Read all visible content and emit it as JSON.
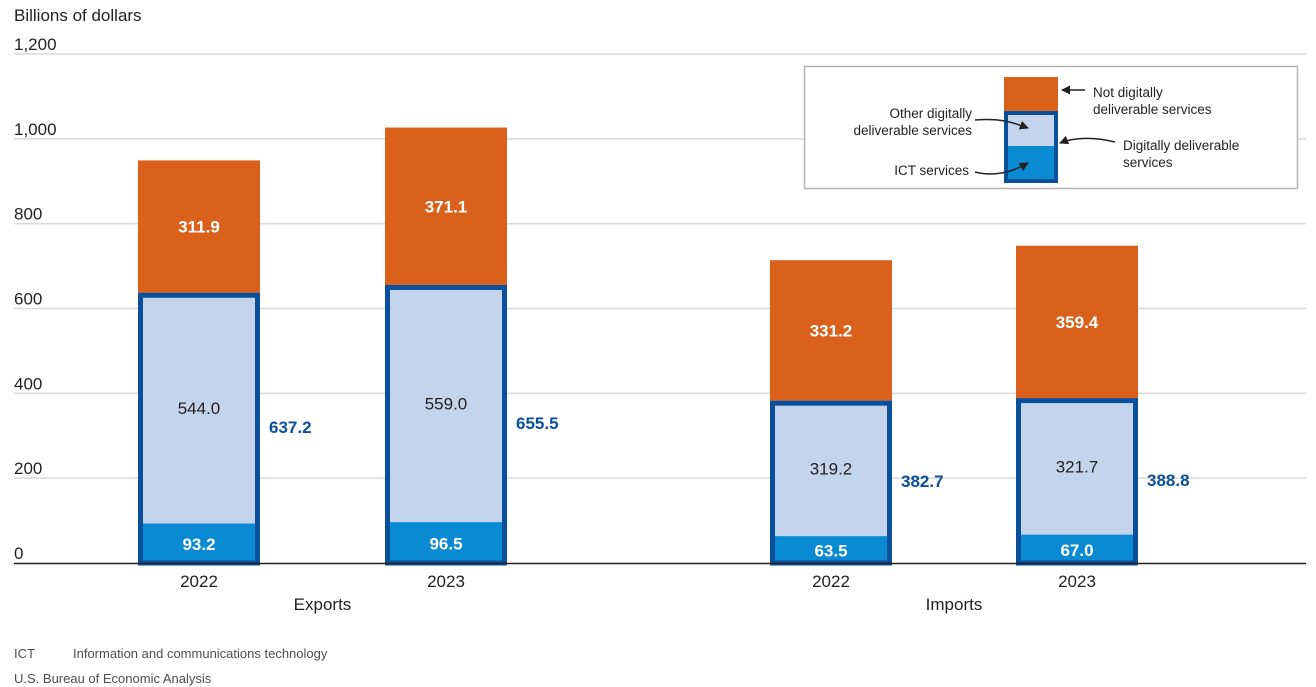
{
  "chart_data": {
    "type": "bar",
    "stacked": true,
    "ylabel": "Billions of dollars",
    "ylim": [
      0,
      1200
    ],
    "yticks": [
      0,
      200,
      400,
      600,
      800,
      1000,
      1200
    ],
    "ytick_labels": [
      "0",
      "200",
      "400",
      "600",
      "800",
      "1,000",
      "1,200"
    ],
    "grid": true,
    "groups": [
      {
        "name": "Exports",
        "categories": [
          "2022",
          "2023"
        ]
      },
      {
        "name": "Imports",
        "categories": [
          "2022",
          "2023"
        ]
      }
    ],
    "categories": [
      "Exports 2022",
      "Exports 2023",
      "Imports 2022",
      "Imports 2023"
    ],
    "series": [
      {
        "name": "ICT services",
        "color": "#0a8ad2",
        "label_color": "#ffffff",
        "values": [
          93.2,
          96.5,
          63.5,
          67.0
        ],
        "labels": [
          "93.2",
          "96.5",
          "63.5",
          "67.0"
        ]
      },
      {
        "name": "Other digitally deliverable services",
        "color": "#c3d4ec",
        "label_color": "#231f20",
        "values": [
          544.0,
          559.0,
          319.2,
          321.7
        ],
        "labels": [
          "544.0",
          "559.0",
          "319.2",
          "321.7"
        ]
      },
      {
        "name": "Not digitally deliverable services",
        "color": "#d9611c",
        "label_color": "#ffffff",
        "values": [
          311.9,
          371.1,
          331.2,
          359.4
        ],
        "labels": [
          "311.9",
          "371.1",
          "331.2",
          "359.4"
        ]
      }
    ],
    "digitally_deliverable_totals": {
      "name": "Digitally deliverable services",
      "outline_color": "#0a4f9a",
      "values": [
        637.2,
        655.5,
        382.7,
        388.8
      ],
      "labels": [
        "637.2",
        "655.5",
        "382.7",
        "388.8"
      ]
    },
    "legend": {
      "placement": "top-right",
      "entries": [
        {
          "text_lines": [
            "Not digitally",
            "deliverable services"
          ]
        },
        {
          "text_lines": [
            "Other digitally",
            "deliverable services"
          ]
        },
        {
          "text_lines": [
            "Digitally deliverable",
            "services"
          ]
        },
        {
          "text_lines": [
            "ICT services"
          ]
        }
      ]
    }
  },
  "footnotes": {
    "abbr": "ICT",
    "abbr_definition": "Information and communications technology",
    "source": "U.S. Bureau of Economic Analysis"
  }
}
